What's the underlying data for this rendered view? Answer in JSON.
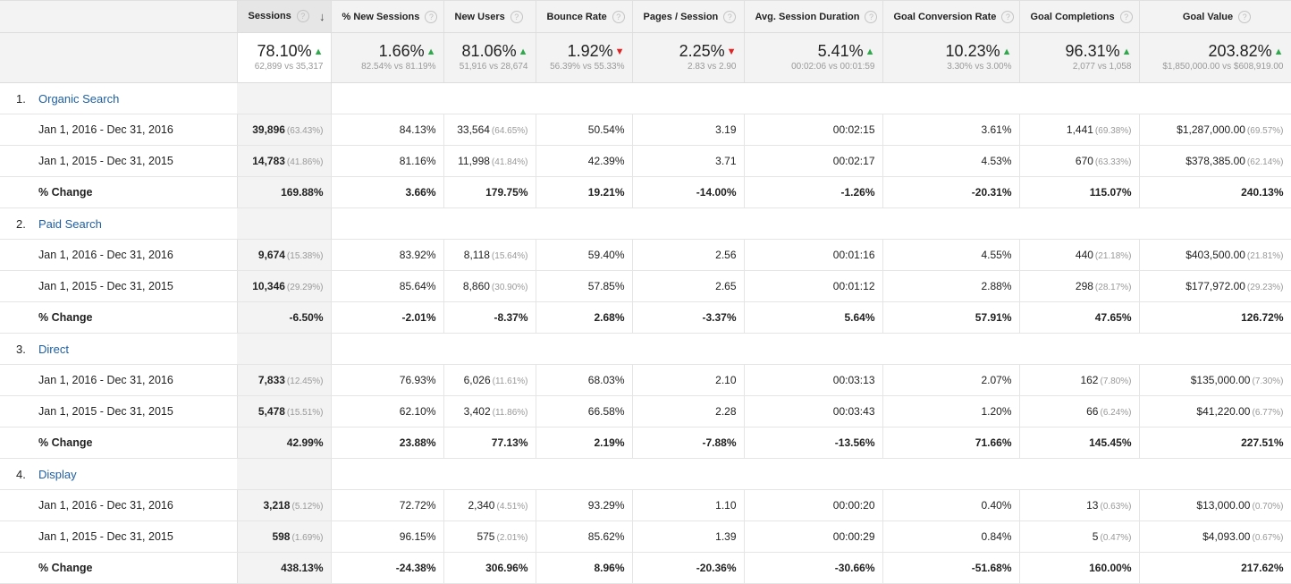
{
  "columns": [
    {
      "key": "sessions",
      "label": "Sessions"
    },
    {
      "key": "new_sessions_pct",
      "label": "% New Sessions"
    },
    {
      "key": "new_users",
      "label": "New Users"
    },
    {
      "key": "bounce_rate",
      "label": "Bounce Rate"
    },
    {
      "key": "pages_session",
      "label": "Pages / Session"
    },
    {
      "key": "avg_session_duration",
      "label": "Avg. Session Duration"
    },
    {
      "key": "goal_conversion_rate",
      "label": "Goal Conversion Rate"
    },
    {
      "key": "goal_completions",
      "label": "Goal Completions"
    },
    {
      "key": "goal_value",
      "label": "Goal Value"
    }
  ],
  "icons": {
    "help": "?",
    "sort_down": "↓",
    "arrow_up": "▲",
    "arrow_down": "▼"
  },
  "summary": [
    {
      "value": "78.10%",
      "trend": "up",
      "compare": "62,899 vs 35,317"
    },
    {
      "value": "1.66%",
      "trend": "up",
      "compare": "82.54% vs 81.19%"
    },
    {
      "value": "81.06%",
      "trend": "up",
      "compare": "51,916 vs 28,674"
    },
    {
      "value": "1.92%",
      "trend": "down",
      "compare": "56.39% vs 55.33%"
    },
    {
      "value": "2.25%",
      "trend": "down",
      "compare": "2.83 vs 2.90"
    },
    {
      "value": "5.41%",
      "trend": "up",
      "compare": "00:02:06 vs 00:01:59"
    },
    {
      "value": "10.23%",
      "trend": "up",
      "compare": "3.30% vs 3.00%"
    },
    {
      "value": "96.31%",
      "trend": "up",
      "compare": "2,077 vs 1,058"
    },
    {
      "value": "203.82%",
      "trend": "up",
      "compare": "$1,850,000.00 vs $608,919.00"
    }
  ],
  "colors": {
    "up": "#2eaa4c",
    "down": "#e02424",
    "link": "#1f5fa0",
    "header_bg": "#f3f3f3"
  },
  "groups": [
    {
      "rank": "1.",
      "name": "Organic Search",
      "rows": [
        {
          "label": "Jan 1, 2016 - Dec 31, 2016",
          "cells": [
            {
              "v": "39,896",
              "p": "(63.43%)"
            },
            {
              "v": "84.13%"
            },
            {
              "v": "33,564",
              "p": "(64.65%)"
            },
            {
              "v": "50.54%"
            },
            {
              "v": "3.19"
            },
            {
              "v": "00:02:15"
            },
            {
              "v": "3.61%"
            },
            {
              "v": "1,441",
              "p": "(69.38%)"
            },
            {
              "v": "$1,287,000.00",
              "p": "(69.57%)"
            }
          ]
        },
        {
          "label": "Jan 1, 2015 - Dec 31, 2015",
          "cells": [
            {
              "v": "14,783",
              "p": "(41.86%)"
            },
            {
              "v": "81.16%"
            },
            {
              "v": "11,998",
              "p": "(41.84%)"
            },
            {
              "v": "42.39%"
            },
            {
              "v": "3.71"
            },
            {
              "v": "00:02:17"
            },
            {
              "v": "4.53%"
            },
            {
              "v": "670",
              "p": "(63.33%)"
            },
            {
              "v": "$378,385.00",
              "p": "(62.14%)"
            }
          ]
        },
        {
          "label": "% Change",
          "change": true,
          "cells": [
            {
              "v": "169.88%"
            },
            {
              "v": "3.66%"
            },
            {
              "v": "179.75%"
            },
            {
              "v": "19.21%"
            },
            {
              "v": "-14.00%"
            },
            {
              "v": "-1.26%"
            },
            {
              "v": "-20.31%"
            },
            {
              "v": "115.07%"
            },
            {
              "v": "240.13%"
            }
          ]
        }
      ]
    },
    {
      "rank": "2.",
      "name": "Paid Search",
      "rows": [
        {
          "label": "Jan 1, 2016 - Dec 31, 2016",
          "cells": [
            {
              "v": "9,674",
              "p": "(15.38%)"
            },
            {
              "v": "83.92%"
            },
            {
              "v": "8,118",
              "p": "(15.64%)"
            },
            {
              "v": "59.40%"
            },
            {
              "v": "2.56"
            },
            {
              "v": "00:01:16"
            },
            {
              "v": "4.55%"
            },
            {
              "v": "440",
              "p": "(21.18%)"
            },
            {
              "v": "$403,500.00",
              "p": "(21.81%)"
            }
          ]
        },
        {
          "label": "Jan 1, 2015 - Dec 31, 2015",
          "cells": [
            {
              "v": "10,346",
              "p": "(29.29%)"
            },
            {
              "v": "85.64%"
            },
            {
              "v": "8,860",
              "p": "(30.90%)"
            },
            {
              "v": "57.85%"
            },
            {
              "v": "2.65"
            },
            {
              "v": "00:01:12"
            },
            {
              "v": "2.88%"
            },
            {
              "v": "298",
              "p": "(28.17%)"
            },
            {
              "v": "$177,972.00",
              "p": "(29.23%)"
            }
          ]
        },
        {
          "label": "% Change",
          "change": true,
          "cells": [
            {
              "v": "-6.50%"
            },
            {
              "v": "-2.01%"
            },
            {
              "v": "-8.37%"
            },
            {
              "v": "2.68%"
            },
            {
              "v": "-3.37%"
            },
            {
              "v": "5.64%"
            },
            {
              "v": "57.91%"
            },
            {
              "v": "47.65%"
            },
            {
              "v": "126.72%"
            }
          ]
        }
      ]
    },
    {
      "rank": "3.",
      "name": "Direct",
      "rows": [
        {
          "label": "Jan 1, 2016 - Dec 31, 2016",
          "cells": [
            {
              "v": "7,833",
              "p": "(12.45%)"
            },
            {
              "v": "76.93%"
            },
            {
              "v": "6,026",
              "p": "(11.61%)"
            },
            {
              "v": "68.03%"
            },
            {
              "v": "2.10"
            },
            {
              "v": "00:03:13"
            },
            {
              "v": "2.07%"
            },
            {
              "v": "162",
              "p": "(7.80%)"
            },
            {
              "v": "$135,000.00",
              "p": "(7.30%)"
            }
          ]
        },
        {
          "label": "Jan 1, 2015 - Dec 31, 2015",
          "cells": [
            {
              "v": "5,478",
              "p": "(15.51%)"
            },
            {
              "v": "62.10%"
            },
            {
              "v": "3,402",
              "p": "(11.86%)"
            },
            {
              "v": "66.58%"
            },
            {
              "v": "2.28"
            },
            {
              "v": "00:03:43"
            },
            {
              "v": "1.20%"
            },
            {
              "v": "66",
              "p": "(6.24%)"
            },
            {
              "v": "$41,220.00",
              "p": "(6.77%)"
            }
          ]
        },
        {
          "label": "% Change",
          "change": true,
          "cells": [
            {
              "v": "42.99%"
            },
            {
              "v": "23.88%"
            },
            {
              "v": "77.13%"
            },
            {
              "v": "2.19%"
            },
            {
              "v": "-7.88%"
            },
            {
              "v": "-13.56%"
            },
            {
              "v": "71.66%"
            },
            {
              "v": "145.45%"
            },
            {
              "v": "227.51%"
            }
          ]
        }
      ]
    },
    {
      "rank": "4.",
      "name": "Display",
      "rows": [
        {
          "label": "Jan 1, 2016 - Dec 31, 2016",
          "cells": [
            {
              "v": "3,218",
              "p": "(5.12%)"
            },
            {
              "v": "72.72%"
            },
            {
              "v": "2,340",
              "p": "(4.51%)"
            },
            {
              "v": "93.29%"
            },
            {
              "v": "1.10"
            },
            {
              "v": "00:00:20"
            },
            {
              "v": "0.40%"
            },
            {
              "v": "13",
              "p": "(0.63%)"
            },
            {
              "v": "$13,000.00",
              "p": "(0.70%)"
            }
          ]
        },
        {
          "label": "Jan 1, 2015 - Dec 31, 2015",
          "cells": [
            {
              "v": "598",
              "p": "(1.69%)"
            },
            {
              "v": "96.15%"
            },
            {
              "v": "575",
              "p": "(2.01%)"
            },
            {
              "v": "85.62%"
            },
            {
              "v": "1.39"
            },
            {
              "v": "00:00:29"
            },
            {
              "v": "0.84%"
            },
            {
              "v": "5",
              "p": "(0.47%)"
            },
            {
              "v": "$4,093.00",
              "p": "(0.67%)"
            }
          ]
        },
        {
          "label": "% Change",
          "change": true,
          "cells": [
            {
              "v": "438.13%"
            },
            {
              "v": "-24.38%"
            },
            {
              "v": "306.96%"
            },
            {
              "v": "8.96%"
            },
            {
              "v": "-20.36%"
            },
            {
              "v": "-30.66%"
            },
            {
              "v": "-51.68%"
            },
            {
              "v": "160.00%"
            },
            {
              "v": "217.62%"
            }
          ]
        }
      ]
    }
  ]
}
